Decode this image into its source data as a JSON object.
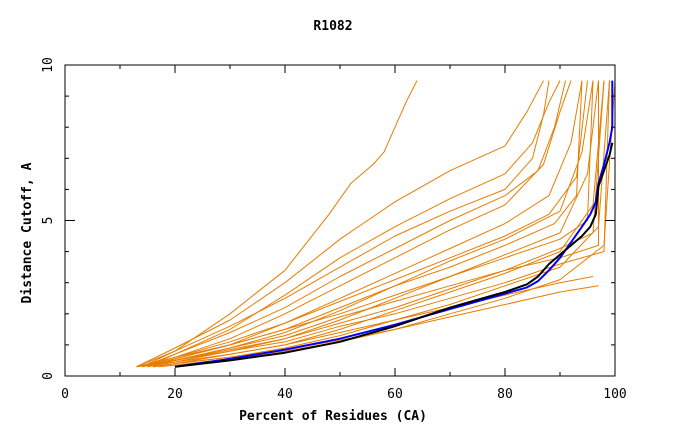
{
  "chart_data": {
    "type": "line",
    "title": "R1082",
    "xlabel": "Percent of Residues (CA)",
    "ylabel": "Distance Cutoff, A",
    "xlim": [
      0,
      100
    ],
    "ylim": [
      0,
      10
    ],
    "x_ticks": [
      "0",
      "20",
      "40",
      "60",
      "80",
      "100"
    ],
    "y_ticks": [
      "0",
      "5",
      "10"
    ],
    "grid": false,
    "legend": "none",
    "colors": {
      "background_models": "#e87d00",
      "highlight_1": "#0000ff",
      "highlight_2": "#000000"
    },
    "series": [
      {
        "role": "highlight",
        "color": "#0000ff",
        "x": [
          20,
          30,
          40,
          50,
          60,
          70,
          80,
          84,
          86,
          88,
          90,
          92,
          94,
          95.5,
          96.5,
          97,
          97.5,
          98,
          99,
          99.5,
          99.5
        ],
        "y": [
          0.3,
          0.55,
          0.85,
          1.2,
          1.65,
          2.15,
          2.65,
          2.85,
          3.05,
          3.4,
          3.8,
          4.3,
          4.8,
          5.2,
          5.6,
          6.2,
          6.5,
          6.8,
          7.5,
          8.0,
          9.5
        ]
      },
      {
        "role": "highlight",
        "color": "#000000",
        "x": [
          20,
          30,
          40,
          50,
          60,
          70,
          80,
          84,
          86,
          88,
          90,
          92,
          94,
          95.5,
          96.5,
          97,
          98,
          99,
          99.5
        ],
        "y": [
          0.3,
          0.5,
          0.75,
          1.1,
          1.6,
          2.2,
          2.7,
          2.95,
          3.2,
          3.6,
          3.9,
          4.2,
          4.5,
          4.8,
          5.2,
          6.1,
          6.6,
          7.1,
          7.5
        ]
      },
      {
        "color": "#e87d00",
        "x": [
          13,
          20,
          30,
          40,
          48,
          52,
          56,
          58,
          60,
          62,
          64
        ],
        "y": [
          0.3,
          0.8,
          2.0,
          3.4,
          5.2,
          6.2,
          6.8,
          7.2,
          8.0,
          8.8,
          9.5
        ]
      },
      {
        "color": "#e87d00",
        "x": [
          13,
          20,
          30,
          40,
          50,
          55,
          60,
          70,
          80,
          84,
          87
        ],
        "y": [
          0.3,
          0.9,
          1.8,
          3.0,
          4.4,
          5.0,
          5.6,
          6.6,
          7.4,
          8.5,
          9.5
        ]
      },
      {
        "color": "#e87d00",
        "x": [
          14,
          20,
          30,
          40,
          50,
          60,
          70,
          80,
          85,
          88,
          90
        ],
        "y": [
          0.3,
          0.7,
          1.5,
          2.6,
          3.8,
          4.8,
          5.7,
          6.5,
          7.5,
          8.8,
          9.5
        ]
      },
      {
        "color": "#e87d00",
        "x": [
          14,
          20,
          30,
          40,
          50,
          60,
          70,
          80,
          87,
          90,
          92
        ],
        "y": [
          0.3,
          0.6,
          1.2,
          2.0,
          2.9,
          3.8,
          4.7,
          5.5,
          6.8,
          8.5,
          9.5
        ]
      },
      {
        "color": "#e87d00",
        "x": [
          15,
          20,
          30,
          40,
          50,
          60,
          70,
          80,
          88,
          92,
          94
        ],
        "y": [
          0.3,
          0.55,
          1.0,
          1.7,
          2.5,
          3.3,
          4.1,
          4.9,
          5.8,
          7.5,
          9.5
        ]
      },
      {
        "color": "#e87d00",
        "x": [
          15,
          20,
          30,
          40,
          50,
          60,
          70,
          80,
          90,
          94,
          96
        ],
        "y": [
          0.3,
          0.5,
          0.9,
          1.4,
          2.1,
          2.9,
          3.7,
          4.4,
          5.3,
          7.2,
          9.5
        ]
      },
      {
        "color": "#e87d00",
        "x": [
          15,
          20,
          30,
          40,
          50,
          60,
          70,
          80,
          90,
          95,
          97
        ],
        "y": [
          0.3,
          0.45,
          0.8,
          1.2,
          1.8,
          2.5,
          3.2,
          3.9,
          4.6,
          6.5,
          9.5
        ]
      },
      {
        "color": "#e87d00",
        "x": [
          16,
          20,
          30,
          40,
          50,
          60,
          70,
          80,
          90,
          96,
          98
        ],
        "y": [
          0.3,
          0.4,
          0.7,
          1.0,
          1.5,
          2.1,
          2.7,
          3.3,
          4.0,
          5.5,
          9.5
        ]
      },
      {
        "color": "#e87d00",
        "x": [
          16,
          20,
          30,
          40,
          50,
          60,
          70,
          80,
          90,
          97,
          99
        ],
        "y": [
          0.3,
          0.4,
          0.6,
          0.9,
          1.3,
          1.8,
          2.3,
          2.9,
          3.5,
          4.8,
          9.5
        ]
      },
      {
        "color": "#e87d00",
        "x": [
          17,
          20,
          30,
          40,
          50,
          60,
          70,
          80,
          90,
          98,
          100
        ],
        "y": [
          0.3,
          0.35,
          0.55,
          0.8,
          1.1,
          1.5,
          2.0,
          2.5,
          3.1,
          4.2,
          9.5
        ]
      },
      {
        "color": "#e87d00",
        "x": [
          14,
          20,
          30,
          40,
          50,
          60,
          70,
          80,
          90,
          97,
          97
        ],
        "y": [
          0.3,
          0.5,
          0.9,
          1.3,
          1.9,
          2.4,
          2.9,
          3.4,
          3.8,
          4.2,
          9.5
        ]
      },
      {
        "color": "#e87d00",
        "x": [
          13,
          20,
          30,
          40,
          50,
          60,
          70,
          80,
          90,
          96
        ],
        "y": [
          0.3,
          0.45,
          0.7,
          1.0,
          1.4,
          1.8,
          2.2,
          2.6,
          3.0,
          3.2
        ]
      },
      {
        "color": "#e87d00",
        "x": [
          14,
          20,
          30,
          40,
          50,
          60,
          70,
          80,
          88,
          93,
          95
        ],
        "y": [
          0.3,
          0.6,
          1.1,
          1.7,
          2.4,
          3.1,
          3.8,
          4.5,
          5.2,
          6.4,
          9.5
        ]
      },
      {
        "color": "#e87d00",
        "x": [
          15,
          20,
          30,
          40,
          50,
          60,
          70,
          80,
          86,
          89,
          91
        ],
        "y": [
          0.3,
          0.7,
          1.4,
          2.2,
          3.2,
          4.1,
          5.0,
          5.8,
          6.6,
          8.0,
          9.5
        ]
      },
      {
        "color": "#e87d00",
        "x": [
          14,
          20,
          30,
          40,
          50,
          60,
          70,
          80,
          85,
          87,
          88
        ],
        "y": [
          0.3,
          0.8,
          1.6,
          2.5,
          3.5,
          4.5,
          5.3,
          6.0,
          7.0,
          8.4,
          9.5
        ]
      },
      {
        "color": "#e87d00",
        "x": [
          13,
          20,
          30,
          40,
          50,
          60,
          70,
          80,
          90,
          95,
          96
        ],
        "y": [
          0.3,
          0.6,
          1.0,
          1.5,
          2.0,
          2.6,
          3.2,
          3.8,
          4.4,
          5.0,
          9.5
        ]
      },
      {
        "color": "#e87d00",
        "x": [
          16,
          20,
          30,
          40,
          50,
          60,
          70,
          80,
          90,
          97
        ],
        "y": [
          0.3,
          0.4,
          0.6,
          0.85,
          1.15,
          1.5,
          1.9,
          2.3,
          2.7,
          2.9
        ]
      },
      {
        "color": "#e87d00",
        "x": [
          15,
          20,
          30,
          40,
          50,
          60,
          70,
          80,
          90,
          98,
          99
        ],
        "y": [
          0.3,
          0.5,
          0.8,
          1.1,
          1.6,
          2.0,
          2.5,
          3.0,
          3.6,
          4.0,
          9.5
        ]
      },
      {
        "color": "#e87d00",
        "x": [
          14,
          20,
          30,
          40,
          50,
          60,
          70,
          80,
          89,
          93,
          94
        ],
        "y": [
          0.3,
          0.55,
          1.0,
          1.5,
          2.2,
          2.9,
          3.5,
          4.2,
          4.9,
          5.8,
          9.5
        ]
      },
      {
        "color": "#e87d00",
        "x": [
          13,
          20,
          30,
          40,
          50,
          60,
          70,
          80,
          90,
          96,
          98
        ],
        "y": [
          0.3,
          0.5,
          0.85,
          1.2,
          1.7,
          2.2,
          2.8,
          3.4,
          4.1,
          4.6,
          9.5
        ]
      }
    ]
  }
}
